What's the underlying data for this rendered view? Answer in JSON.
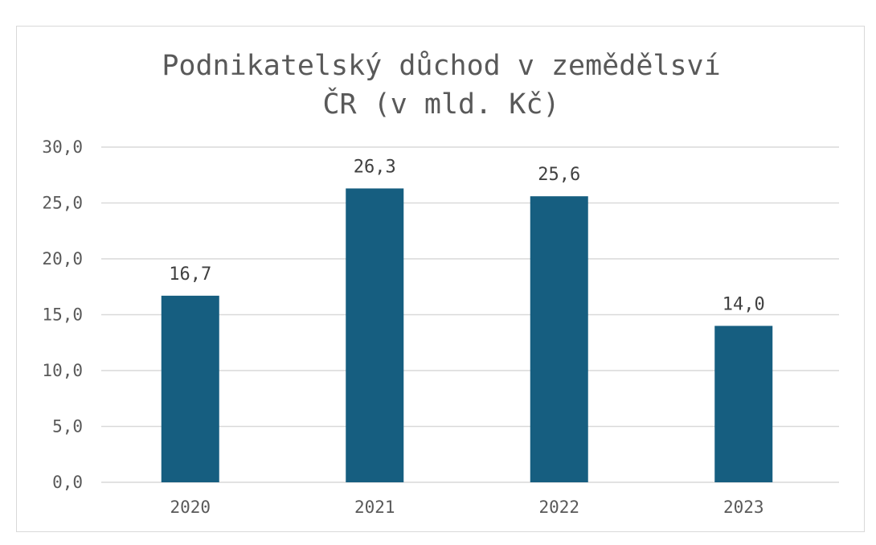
{
  "chart_data": {
    "type": "bar",
    "title": "Podnikatelský důchod v zemědělsví\nČR (v mld. Kč)",
    "categories": [
      "2020",
      "2021",
      "2022",
      "2023"
    ],
    "values": [
      16.7,
      26.3,
      25.6,
      14.0
    ],
    "data_labels": [
      "16,7",
      "26,3",
      "25,6",
      "14,0"
    ],
    "y_tick_labels": [
      "0,0",
      "5,0",
      "10,0",
      "15,0",
      "20,0",
      "25,0",
      "30,0"
    ],
    "y_ticks": [
      0,
      5,
      10,
      15,
      20,
      25,
      30
    ],
    "ylim": [
      0,
      30
    ],
    "grid": true,
    "legend": "none",
    "colors": {
      "bar": "#165e80",
      "grid": "#d9d9d9",
      "text": "#595959"
    }
  }
}
